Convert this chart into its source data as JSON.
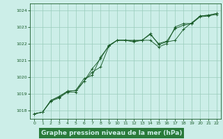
{
  "bg_color": "#cceee8",
  "plot_bg_color": "#cceee8",
  "grid_color": "#99ccbb",
  "line_color": "#1a5c2a",
  "title": "Graphe pression niveau de la mer (hPa)",
  "title_fontsize": 6.5,
  "title_bg": "#2a7a3a",
  "title_text_color": "#cceee8",
  "ylim": [
    1017.5,
    1024.4
  ],
  "xlim": [
    -0.5,
    22.5
  ],
  "yticks": [
    1018,
    1019,
    1020,
    1021,
    1022,
    1023,
    1024
  ],
  "xticks": [
    0,
    1,
    2,
    3,
    4,
    5,
    6,
    7,
    8,
    9,
    10,
    11,
    12,
    13,
    14,
    15,
    16,
    17,
    18,
    19,
    20,
    21,
    22
  ],
  "tick_fontsize": 4.5,
  "series1_x": [
    0,
    1,
    2,
    3,
    4,
    5,
    6,
    7,
    8,
    9,
    10,
    11,
    12,
    13,
    14,
    15,
    16,
    17,
    18,
    19,
    20,
    21,
    22
  ],
  "series1_y": [
    1017.8,
    1017.9,
    1018.6,
    1018.8,
    1019.15,
    1019.2,
    1019.75,
    1020.5,
    1021.1,
    1021.9,
    1022.2,
    1022.2,
    1022.15,
    1022.2,
    1022.55,
    1022.0,
    1022.15,
    1022.9,
    1023.1,
    1023.2,
    1023.65,
    1023.7,
    1023.8
  ],
  "series2_x": [
    0,
    1,
    2,
    3,
    4,
    5,
    6,
    7,
    8,
    9,
    10,
    11,
    12,
    13,
    14,
    15,
    16,
    17,
    18,
    19,
    20,
    21,
    22
  ],
  "series2_y": [
    1017.8,
    1017.9,
    1018.6,
    1018.85,
    1019.15,
    1019.2,
    1019.9,
    1020.1,
    1021.2,
    1021.85,
    1022.2,
    1022.2,
    1022.2,
    1022.2,
    1022.6,
    1021.95,
    1022.1,
    1022.2,
    1022.85,
    1023.25,
    1023.65,
    1023.7,
    1023.8
  ],
  "series3_x": [
    0,
    1,
    2,
    3,
    4,
    5,
    6,
    7,
    8,
    9,
    10,
    11,
    12,
    13,
    14,
    15,
    16,
    17,
    18,
    19,
    20,
    21,
    22
  ],
  "series3_y": [
    1017.8,
    1017.9,
    1018.55,
    1018.75,
    1019.1,
    1019.1,
    1019.75,
    1020.3,
    1020.6,
    1021.85,
    1022.2,
    1022.2,
    1022.1,
    1022.2,
    1022.2,
    1021.8,
    1022.0,
    1023.0,
    1023.2,
    1023.2,
    1023.6,
    1023.65,
    1023.75
  ]
}
